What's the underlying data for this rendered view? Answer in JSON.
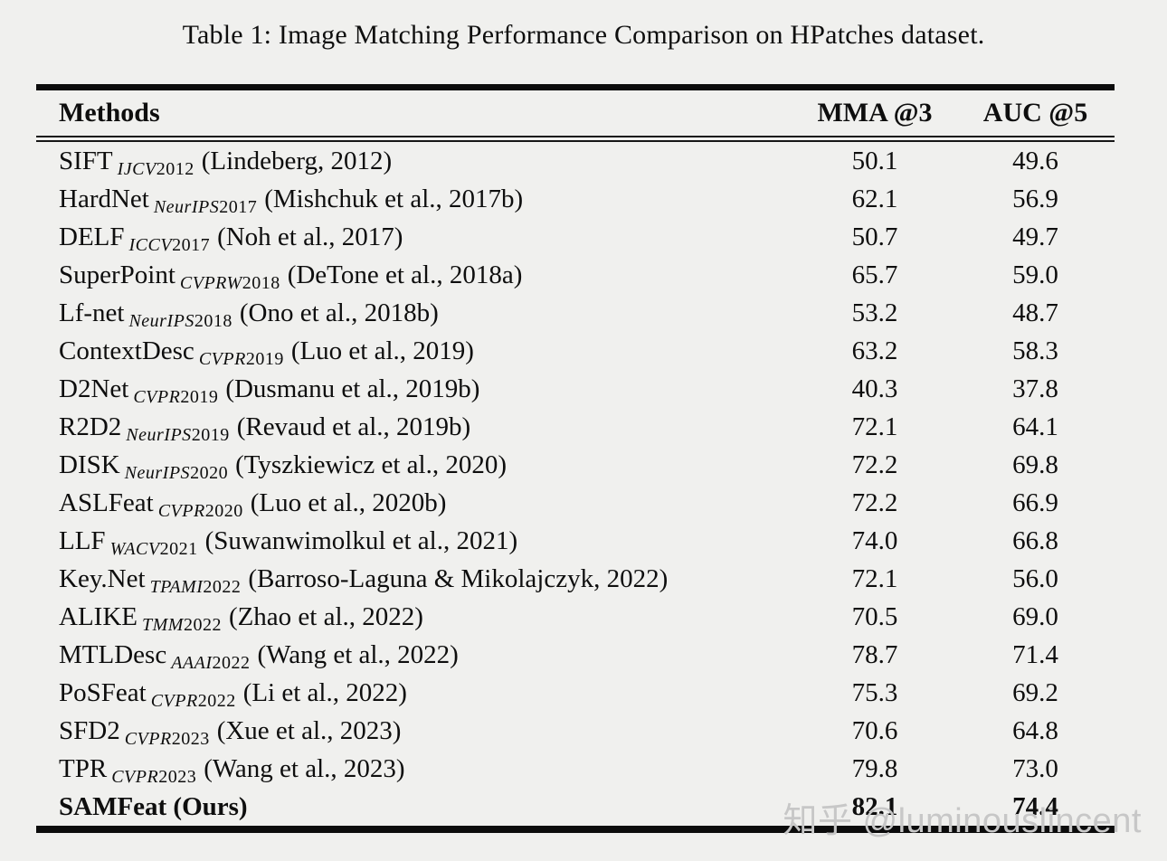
{
  "page": {
    "watermark": "知乎 @luminouslincent",
    "watermark_color": "#c7c7c7",
    "background_color": "#f0f0ee",
    "rule_color": "#0c0c0c"
  },
  "table": {
    "caption": "Table 1: Image Matching Performance Comparison on HPatches dataset.",
    "columns": [
      "Methods",
      "MMA @3",
      "AUC @5"
    ],
    "rows": [
      {
        "method": "SIFT",
        "venue": "IJCV",
        "venue_year": "2012",
        "citation": "(Lindeberg, 2012)",
        "mma3": "50.1",
        "auc5": "49.6",
        "bold": false
      },
      {
        "method": "HardNet",
        "venue": "NeurIPS",
        "venue_year": "2017",
        "citation": "(Mishchuk et al., 2017b)",
        "mma3": "62.1",
        "auc5": "56.9",
        "bold": false
      },
      {
        "method": "DELF",
        "venue": "ICCV",
        "venue_year": "2017",
        "citation": "(Noh et al., 2017)",
        "mma3": "50.7",
        "auc5": "49.7",
        "bold": false
      },
      {
        "method": "SuperPoint",
        "venue": "CVPRW",
        "venue_year": "2018",
        "citation": "(DeTone et al., 2018a)",
        "mma3": "65.7",
        "auc5": "59.0",
        "bold": false
      },
      {
        "method": "Lf-net",
        "venue": "NeurIPS",
        "venue_year": "2018",
        "citation": "(Ono et al., 2018b)",
        "mma3": "53.2",
        "auc5": "48.7",
        "bold": false
      },
      {
        "method": "ContextDesc",
        "venue": "CVPR",
        "venue_year": "2019",
        "citation": "(Luo et al., 2019)",
        "mma3": "63.2",
        "auc5": "58.3",
        "bold": false
      },
      {
        "method": "D2Net",
        "venue": "CVPR",
        "venue_year": "2019",
        "citation": "(Dusmanu et al., 2019b)",
        "mma3": "40.3",
        "auc5": "37.8",
        "bold": false
      },
      {
        "method": "R2D2",
        "venue": "NeurIPS",
        "venue_year": "2019",
        "citation": "(Revaud et al., 2019b)",
        "mma3": "72.1",
        "auc5": "64.1",
        "bold": false
      },
      {
        "method": "DISK",
        "venue": "NeurIPS",
        "venue_year": "2020",
        "citation": "(Tyszkiewicz et al., 2020)",
        "mma3": "72.2",
        "auc5": "69.8",
        "bold": false
      },
      {
        "method": "ASLFeat",
        "venue": "CVPR",
        "venue_year": "2020",
        "citation": "(Luo et al., 2020b)",
        "mma3": "72.2",
        "auc5": "66.9",
        "bold": false
      },
      {
        "method": "LLF",
        "venue": "WACV",
        "venue_year": "2021",
        "citation": "(Suwanwimolkul et al., 2021)",
        "mma3": "74.0",
        "auc5": "66.8",
        "bold": false
      },
      {
        "method": "Key.Net",
        "venue": "TPAMI",
        "venue_year": "2022",
        "citation": "(Barroso-Laguna & Mikolajczyk, 2022)",
        "mma3": "72.1",
        "auc5": "56.0",
        "bold": false
      },
      {
        "method": "ALIKE",
        "venue": "TMM",
        "venue_year": "2022",
        "citation": "(Zhao et al., 2022)",
        "mma3": "70.5",
        "auc5": "69.0",
        "bold": false
      },
      {
        "method": "MTLDesc",
        "venue": "AAAI",
        "venue_year": "2022",
        "citation": "(Wang et al., 2022)",
        "mma3": "78.7",
        "auc5": "71.4",
        "bold": false
      },
      {
        "method": "PoSFeat",
        "venue": "CVPR",
        "venue_year": "2022",
        "citation": "(Li et al., 2022)",
        "mma3": "75.3",
        "auc5": "69.2",
        "bold": false
      },
      {
        "method": "SFD2",
        "venue": "CVPR",
        "venue_year": "2023",
        "citation": "(Xue et al., 2023)",
        "mma3": "70.6",
        "auc5": "64.8",
        "bold": false
      },
      {
        "method": "TPR",
        "venue": "CVPR",
        "venue_year": "2023",
        "citation": "(Wang et al., 2023)",
        "mma3": "79.8",
        "auc5": "73.0",
        "bold": false
      },
      {
        "method": "SAMFeat (Ours)",
        "venue": "",
        "venue_year": "",
        "citation": "",
        "mma3": "82.1",
        "auc5": "74.4",
        "bold": true
      }
    ]
  }
}
